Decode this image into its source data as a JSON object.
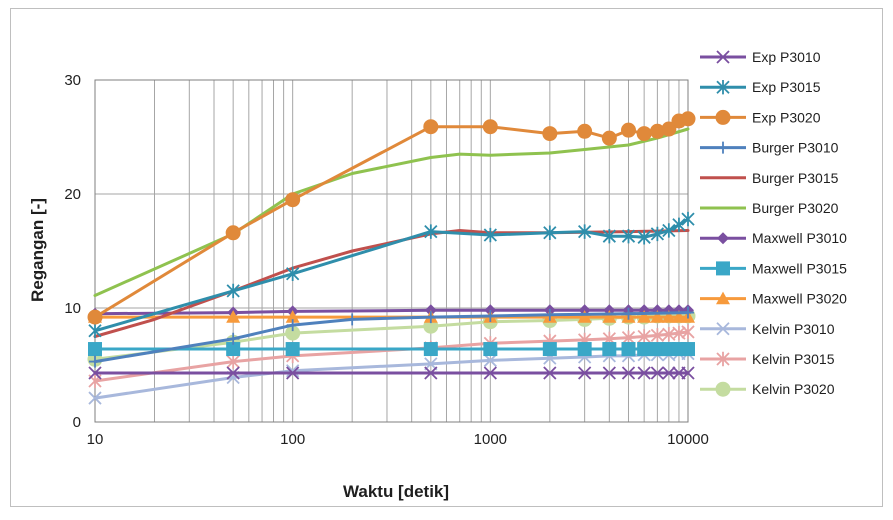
{
  "chart_data": {
    "type": "line",
    "title": "",
    "xlabel": "Waktu  [detik]",
    "ylabel": "Regangan  [-]",
    "xscale": "log",
    "xlim": [
      10,
      10000
    ],
    "ylim": [
      0,
      30
    ],
    "xticks": [
      10,
      100,
      1000,
      10000
    ],
    "xtick_labels": [
      "10",
      "100",
      "1000",
      "10000"
    ],
    "yticks": [
      0,
      10,
      20,
      30
    ],
    "ytick_labels": [
      "0",
      "10",
      "20",
      "30"
    ],
    "grid": true,
    "legend_position": "right",
    "series": [
      {
        "name": "Exp P3010",
        "color": "#7a4fa0",
        "marker": "x",
        "x": [
          10,
          50,
          100,
          500,
          1000,
          2000,
          3000,
          4000,
          5000,
          6000,
          7000,
          8000,
          9000,
          10000
        ],
        "y": [
          4.3,
          4.3,
          4.3,
          4.3,
          4.3,
          4.3,
          4.3,
          4.3,
          4.3,
          4.3,
          4.3,
          4.3,
          4.3,
          4.3
        ]
      },
      {
        "name": "Exp P3015",
        "color": "#2f8eab",
        "marker": "star",
        "x": [
          10,
          50,
          100,
          500,
          1000,
          2000,
          3000,
          4000,
          5000,
          6000,
          7000,
          8000,
          9000,
          10000
        ],
        "y": [
          8.0,
          11.5,
          13.0,
          16.7,
          16.4,
          16.6,
          16.7,
          16.3,
          16.3,
          16.2,
          16.5,
          16.8,
          17.3,
          17.8
        ]
      },
      {
        "name": "Exp P3020",
        "color": "#e0893a",
        "marker": "circle",
        "x": [
          10,
          50,
          100,
          500,
          1000,
          2000,
          3000,
          4000,
          5000,
          6000,
          7000,
          8000,
          9000,
          10000
        ],
        "y": [
          9.2,
          16.6,
          19.5,
          25.9,
          25.9,
          25.3,
          25.5,
          24.9,
          25.6,
          25.3,
          25.5,
          25.7,
          26.4,
          26.6
        ]
      },
      {
        "name": "Burger P3010",
        "color": "#4f81bd",
        "marker": "plus",
        "x": [
          10,
          50,
          100,
          200,
          500,
          1000,
          2000,
          5000,
          10000
        ],
        "y": [
          5.3,
          7.3,
          8.5,
          9.0,
          9.2,
          9.3,
          9.4,
          9.5,
          9.6
        ]
      },
      {
        "name": "Burger P3015",
        "color": "#c0504d",
        "marker": "none",
        "x": [
          10,
          20,
          50,
          100,
          200,
          500,
          700,
          1000,
          2000,
          5000,
          10000
        ],
        "y": [
          7.5,
          9.0,
          11.5,
          13.5,
          15.0,
          16.5,
          16.8,
          16.6,
          16.6,
          16.7,
          16.8
        ]
      },
      {
        "name": "Burger P3020",
        "color": "#8fc24f",
        "marker": "none",
        "x": [
          10,
          50,
          100,
          200,
          500,
          700,
          1000,
          2000,
          3000,
          5000,
          7000,
          10000
        ],
        "y": [
          11.1,
          16.5,
          20.0,
          21.8,
          23.2,
          23.5,
          23.4,
          23.6,
          23.9,
          24.3,
          24.9,
          25.7
        ]
      },
      {
        "name": "Maxwell P3010",
        "color": "#7a4fa0",
        "marker": "diamond",
        "x": [
          10,
          50,
          100,
          500,
          1000,
          2000,
          3000,
          4000,
          5000,
          6000,
          7000,
          8000,
          9000,
          10000
        ],
        "y": [
          9.5,
          9.6,
          9.7,
          9.8,
          9.8,
          9.8,
          9.8,
          9.8,
          9.8,
          9.8,
          9.8,
          9.8,
          9.8,
          9.8
        ]
      },
      {
        "name": "Maxwell P3015",
        "color": "#3aa7c7",
        "marker": "square",
        "x": [
          10,
          50,
          100,
          500,
          1000,
          2000,
          3000,
          4000,
          5000,
          6000,
          7000,
          8000,
          9000,
          10000
        ],
        "y": [
          6.4,
          6.4,
          6.4,
          6.4,
          6.4,
          6.4,
          6.4,
          6.4,
          6.4,
          6.4,
          6.4,
          6.4,
          6.4,
          6.4
        ]
      },
      {
        "name": "Maxwell P3020",
        "color": "#f79a3c",
        "marker": "triangle",
        "x": [
          10,
          50,
          100,
          500,
          1000,
          2000,
          3000,
          4000,
          5000,
          6000,
          7000,
          8000,
          9000,
          10000
        ],
        "y": [
          9.2,
          9.2,
          9.2,
          9.2,
          9.2,
          9.2,
          9.2,
          9.2,
          9.2,
          9.2,
          9.2,
          9.2,
          9.2,
          9.2
        ]
      },
      {
        "name": "Kelvin P3010",
        "color": "#a8b8dc",
        "marker": "x",
        "x": [
          10,
          50,
          100,
          500,
          1000,
          2000,
          3000,
          4000,
          5000,
          6000,
          7000,
          8000,
          9000,
          10000
        ],
        "y": [
          2.1,
          3.9,
          4.5,
          5.1,
          5.4,
          5.6,
          5.7,
          5.8,
          5.8,
          5.9,
          5.9,
          5.9,
          6.0,
          6.0
        ]
      },
      {
        "name": "Kelvin P3015",
        "color": "#e8a3a3",
        "marker": "star",
        "x": [
          10,
          50,
          100,
          500,
          1000,
          2000,
          3000,
          4000,
          5000,
          6000,
          7000,
          8000,
          9000,
          10000
        ],
        "y": [
          3.6,
          5.3,
          5.8,
          6.5,
          6.9,
          7.1,
          7.2,
          7.3,
          7.4,
          7.5,
          7.6,
          7.7,
          7.8,
          7.9
        ]
      },
      {
        "name": "Kelvin P3020",
        "color": "#c4dca0",
        "marker": "circle",
        "x": [
          10,
          50,
          100,
          500,
          1000,
          2000,
          3000,
          4000,
          5000,
          6000,
          7000,
          8000,
          9000,
          10000
        ],
        "y": [
          5.5,
          7.0,
          7.8,
          8.4,
          8.8,
          8.9,
          9.0,
          9.1,
          9.2,
          9.2,
          9.3,
          9.3,
          9.3,
          9.3
        ]
      }
    ]
  }
}
